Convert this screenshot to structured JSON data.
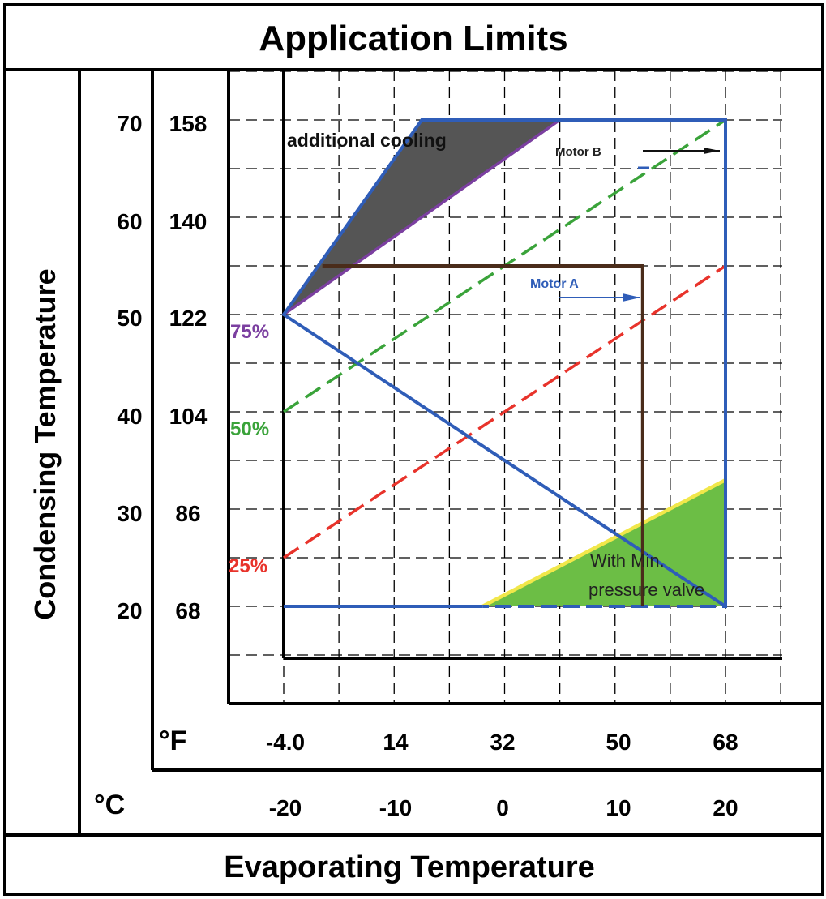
{
  "chart_data": {
    "type": "line",
    "title": "Application Limits",
    "xlabel": "Evaporating Temperature",
    "ylabel": "Condensing Temperature",
    "x_unit_f": "°F",
    "x_unit_c": "°C",
    "x_ticks_f": [
      "-4.0",
      "14",
      "32",
      "50",
      "68"
    ],
    "x_ticks_c": [
      "-20",
      "-10",
      "0",
      "10",
      "20"
    ],
    "y_ticks_c": [
      "70",
      "60",
      "50",
      "40",
      "30",
      "20"
    ],
    "y_ticks_f": [
      "158",
      "140",
      "122",
      "104",
      "86",
      "68"
    ],
    "xlim": [
      -20,
      20
    ],
    "ylim": [
      20,
      70
    ],
    "grid": true,
    "colors": {
      "envelope": "#2f5db8",
      "motor_a_line": "#4a2c1a",
      "line_75": "#7b3fa0",
      "line_50": "#3aa33a",
      "line_25": "#e8332b",
      "additional_cooling_fill": "#555555",
      "min_pressure_fill": "#6cbe45",
      "min_pressure_edge": "#f1e74a"
    },
    "envelope": {
      "name": "",
      "points": [
        [
          -20,
          20
        ],
        [
          -20,
          50
        ],
        [
          -7.5,
          70
        ],
        [
          20,
          70
        ],
        [
          20,
          20
        ],
        [
          -20,
          20
        ]
      ]
    },
    "motor_a_limit": {
      "name": "",
      "points": [
        [
          -16.5,
          55
        ],
        [
          12.5,
          55
        ],
        [
          12.5,
          20
        ]
      ]
    },
    "series": [
      {
        "name": "75%",
        "points": [
          [
            -20,
            50
          ],
          [
            5,
            70
          ]
        ]
      },
      {
        "name": "50%",
        "points": [
          [
            -20,
            40
          ],
          [
            20,
            70
          ]
        ]
      },
      {
        "name": "25%",
        "points": [
          [
            -20,
            25
          ],
          [
            20,
            55
          ]
        ]
      }
    ],
    "regions": [
      {
        "name": "additional cooling",
        "points": [
          [
            -20,
            50
          ],
          [
            -7.5,
            70
          ],
          [
            5,
            70
          ]
        ]
      },
      {
        "name": "With Min. pressure valve",
        "points": [
          [
            -2,
            20
          ],
          [
            20,
            33
          ],
          [
            20,
            20
          ]
        ]
      }
    ],
    "annotations": {
      "additional_cooling": "additional cooling",
      "motor_a": "Motor A",
      "motor_b": "Motor B",
      "min_valve_line1": "With  Min.",
      "min_valve_line2": "pressure  valve"
    }
  }
}
